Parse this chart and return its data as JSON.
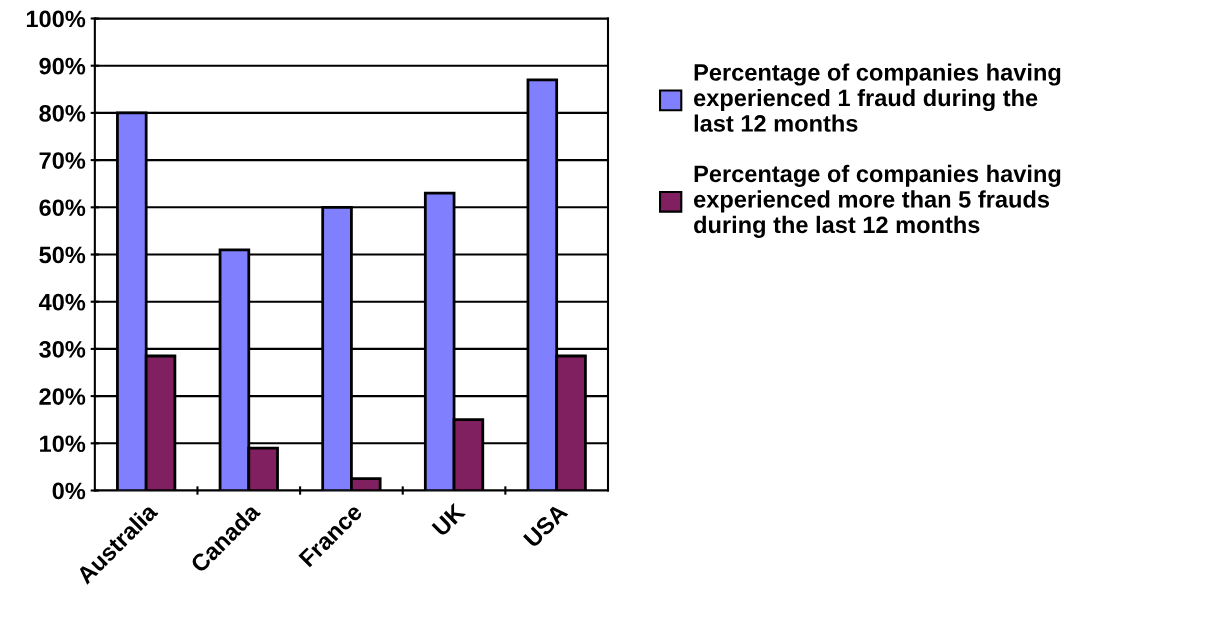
{
  "chart_data": {
    "type": "bar",
    "categories": [
      "Australia",
      "Canada",
      "France",
      "UK",
      "USA"
    ],
    "series": [
      {
        "name": "Percentage of companies having experienced 1 fraud during the last 12 months",
        "color": "#8080ff",
        "values": [
          80,
          51,
          60,
          63,
          87
        ]
      },
      {
        "name": "Percentage of companies having experienced more than 5 frauds during the last 12 months",
        "color": "#802060",
        "values": [
          28.5,
          9,
          2.5,
          15,
          28.5
        ]
      }
    ],
    "ylim": [
      0,
      100
    ],
    "yticks": [
      {
        "value": 0,
        "label": "0%"
      },
      {
        "value": 10,
        "label": "10%"
      },
      {
        "value": 20,
        "label": "20%"
      },
      {
        "value": 30,
        "label": "30%"
      },
      {
        "value": 40,
        "label": "40%"
      },
      {
        "value": 50,
        "label": "50%"
      },
      {
        "value": 60,
        "label": "60%"
      },
      {
        "value": 70,
        "label": "70%"
      },
      {
        "value": 80,
        "label": "80%"
      },
      {
        "value": 90,
        "label": "90%"
      },
      {
        "value": 100,
        "label": "100%"
      }
    ],
    "grid": "y",
    "legend": "right"
  }
}
